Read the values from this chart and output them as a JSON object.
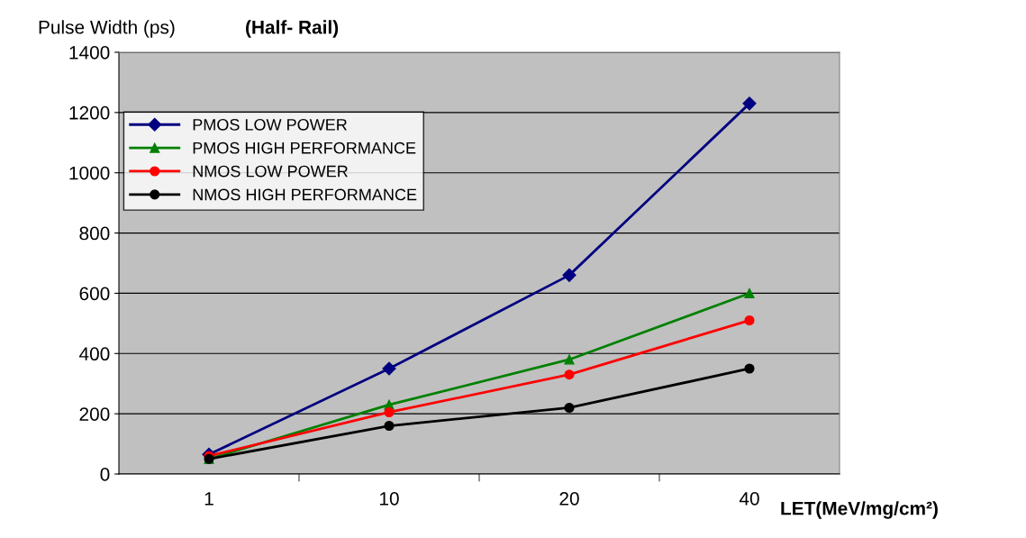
{
  "chart_data": {
    "type": "line",
    "title": "(Half- Rail)",
    "ylabel": "Pulse Width (ps)",
    "xlabel": "LET(MeV/mg/cm²)",
    "categories": [
      "1",
      "10",
      "20",
      "40"
    ],
    "series": [
      {
        "name": "PMOS LOW POWER",
        "color": "#000080",
        "marker": "diamond",
        "values": [
          65,
          350,
          660,
          1230
        ]
      },
      {
        "name": "PMOS HIGH PERFORMANCE",
        "color": "#008000",
        "marker": "triangle",
        "values": [
          50,
          230,
          380,
          600
        ]
      },
      {
        "name": "NMOS LOW POWER",
        "color": "#ff0000",
        "marker": "circle",
        "values": [
          60,
          205,
          330,
          510
        ]
      },
      {
        "name": "NMOS HIGH PERFORMANCE",
        "color": "#000000",
        "marker": "circle",
        "values": [
          50,
          160,
          220,
          350
        ]
      }
    ],
    "ylim": [
      0,
      1400
    ],
    "yticks": [
      0,
      200,
      400,
      600,
      800,
      1000,
      1200,
      1400
    ],
    "grid": "y",
    "legend": "top left",
    "line_style": "solid"
  }
}
